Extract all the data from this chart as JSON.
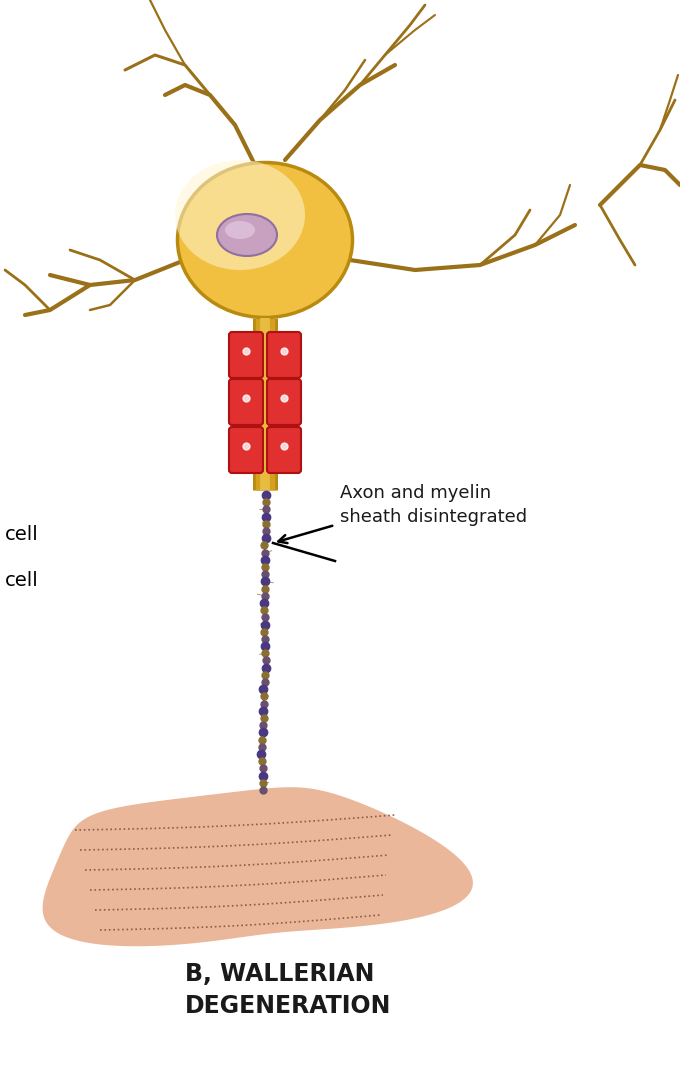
{
  "bg_color": "#ffffff",
  "neuron_body_color": "#f2c040",
  "neuron_body_light": "#fff5d0",
  "neuron_outline": "#b88a10",
  "dendrite_color": "#9a7018",
  "axon_color": "#d4a020",
  "axon_inner": "#e8bc40",
  "myelin_red": "#e03030",
  "myelin_outline": "#b01010",
  "nucleus_fill": "#c8a0c0",
  "nucleus_outline": "#9070a0",
  "disint_dark": "#6a5520",
  "disint_mid": "#8a7030",
  "disint_light": "#b09050",
  "tissue_color": "#e8b090",
  "tissue_color2": "#d4956c",
  "label_color": "#1a1a1a",
  "title": "B, WALLERIAN\nDEGENERATION",
  "label_axon": "Axon and myelin\nsheath disintegrated",
  "label_cell1": "cell",
  "label_cell2": "cell",
  "fig_width": 6.8,
  "fig_height": 10.81
}
